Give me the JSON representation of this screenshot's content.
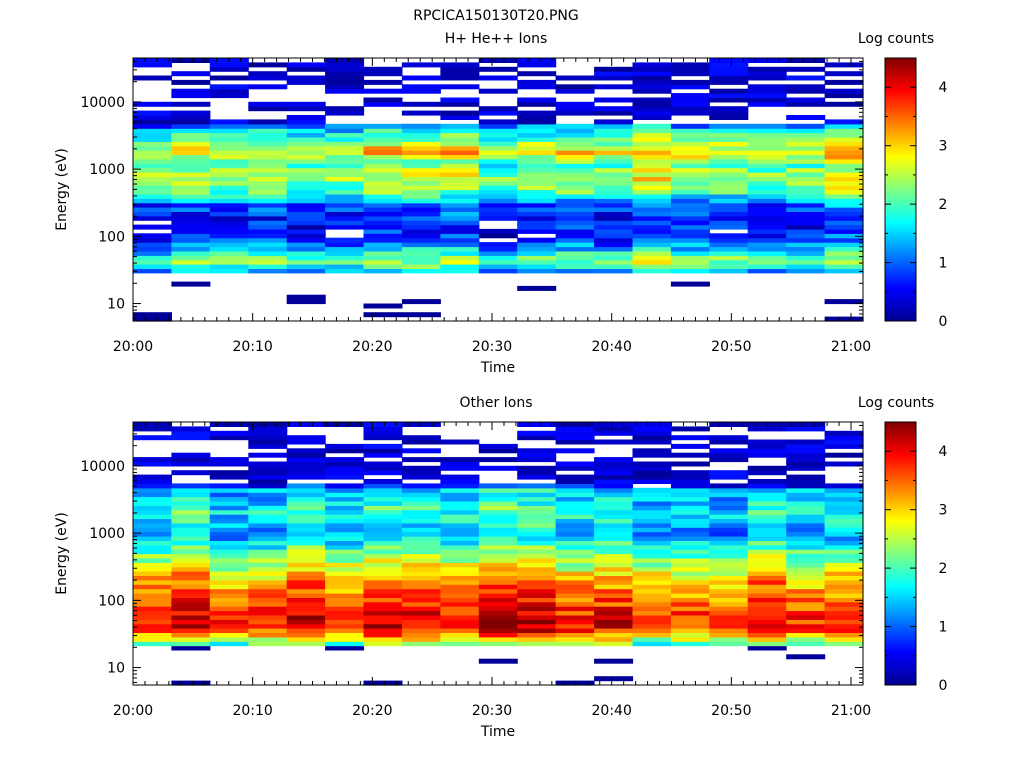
{
  "figure_title": "RPCICA150130T20.PNG",
  "colormap_stops": [
    "#00008f",
    "#0000ff",
    "#0080ff",
    "#00ffff",
    "#80ff80",
    "#ffff00",
    "#ff8000",
    "#ff0000",
    "#800000"
  ],
  "chart_data": [
    {
      "type": "heatmap",
      "title": "H+ He++ Ions",
      "xlabel": "Time",
      "ylabel": "Energy (eV)",
      "colorbar_label": "Log counts",
      "y_scale": "log",
      "ylim": [
        5.5,
        45000
      ],
      "x_range": [
        "20:00",
        "21:01"
      ],
      "xticks": [
        "20:00",
        "20:10",
        "20:20",
        "20:30",
        "20:40",
        "20:50",
        "21:00"
      ],
      "yticks": [
        "10",
        "100",
        "1000",
        "10000"
      ],
      "colorbar_ticks": [
        "0",
        "1",
        "2",
        "3",
        "4"
      ],
      "color_range": [
        0,
        4.5
      ],
      "time_bins": 19,
      "energy_profile": [
        {
          "e": 30,
          "v": 1.3
        },
        {
          "e": 35,
          "v": 1.8
        },
        {
          "e": 45,
          "v": 2.4
        },
        {
          "e": 60,
          "v": 1.6
        },
        {
          "e": 100,
          "v": 0.6
        },
        {
          "e": 200,
          "v": 0.7
        },
        {
          "e": 300,
          "v": 1.0
        },
        {
          "e": 500,
          "v": 2.2
        },
        {
          "e": 800,
          "v": 2.6
        },
        {
          "e": 1200,
          "v": 2.0
        },
        {
          "e": 1800,
          "v": 3.0
        },
        {
          "e": 2500,
          "v": 2.4
        },
        {
          "e": 4000,
          "v": 1.5
        },
        {
          "e": 6000,
          "v": 0.1
        },
        {
          "e": 40000,
          "v": 0.1
        }
      ],
      "sparse_above": 5000,
      "floor_below": 28
    },
    {
      "type": "heatmap",
      "title": "Other Ions",
      "xlabel": "Time",
      "ylabel": "Energy (eV)",
      "colorbar_label": "Log counts",
      "y_scale": "log",
      "ylim": [
        5.5,
        45000
      ],
      "x_range": [
        "20:00",
        "21:01"
      ],
      "xticks": [
        "20:00",
        "20:10",
        "20:20",
        "20:30",
        "20:40",
        "20:50",
        "21:00"
      ],
      "yticks": [
        "10",
        "100",
        "1000",
        "10000"
      ],
      "colorbar_ticks": [
        "0",
        "1",
        "2",
        "3",
        "4"
      ],
      "color_range": [
        0,
        4.5
      ],
      "time_bins": 19,
      "energy_profile": [
        {
          "e": 22,
          "v": 2.0
        },
        {
          "e": 30,
          "v": 3.2
        },
        {
          "e": 40,
          "v": 4.1
        },
        {
          "e": 60,
          "v": 3.9
        },
        {
          "e": 100,
          "v": 3.6
        },
        {
          "e": 200,
          "v": 3.2
        },
        {
          "e": 300,
          "v": 2.8
        },
        {
          "e": 500,
          "v": 2.2
        },
        {
          "e": 1000,
          "v": 1.4
        },
        {
          "e": 2000,
          "v": 1.9
        },
        {
          "e": 3000,
          "v": 1.6
        },
        {
          "e": 4500,
          "v": 1.5
        },
        {
          "e": 5500,
          "v": 0.2
        }
      ],
      "sparse_above": 5500,
      "floor_below": 20
    }
  ]
}
